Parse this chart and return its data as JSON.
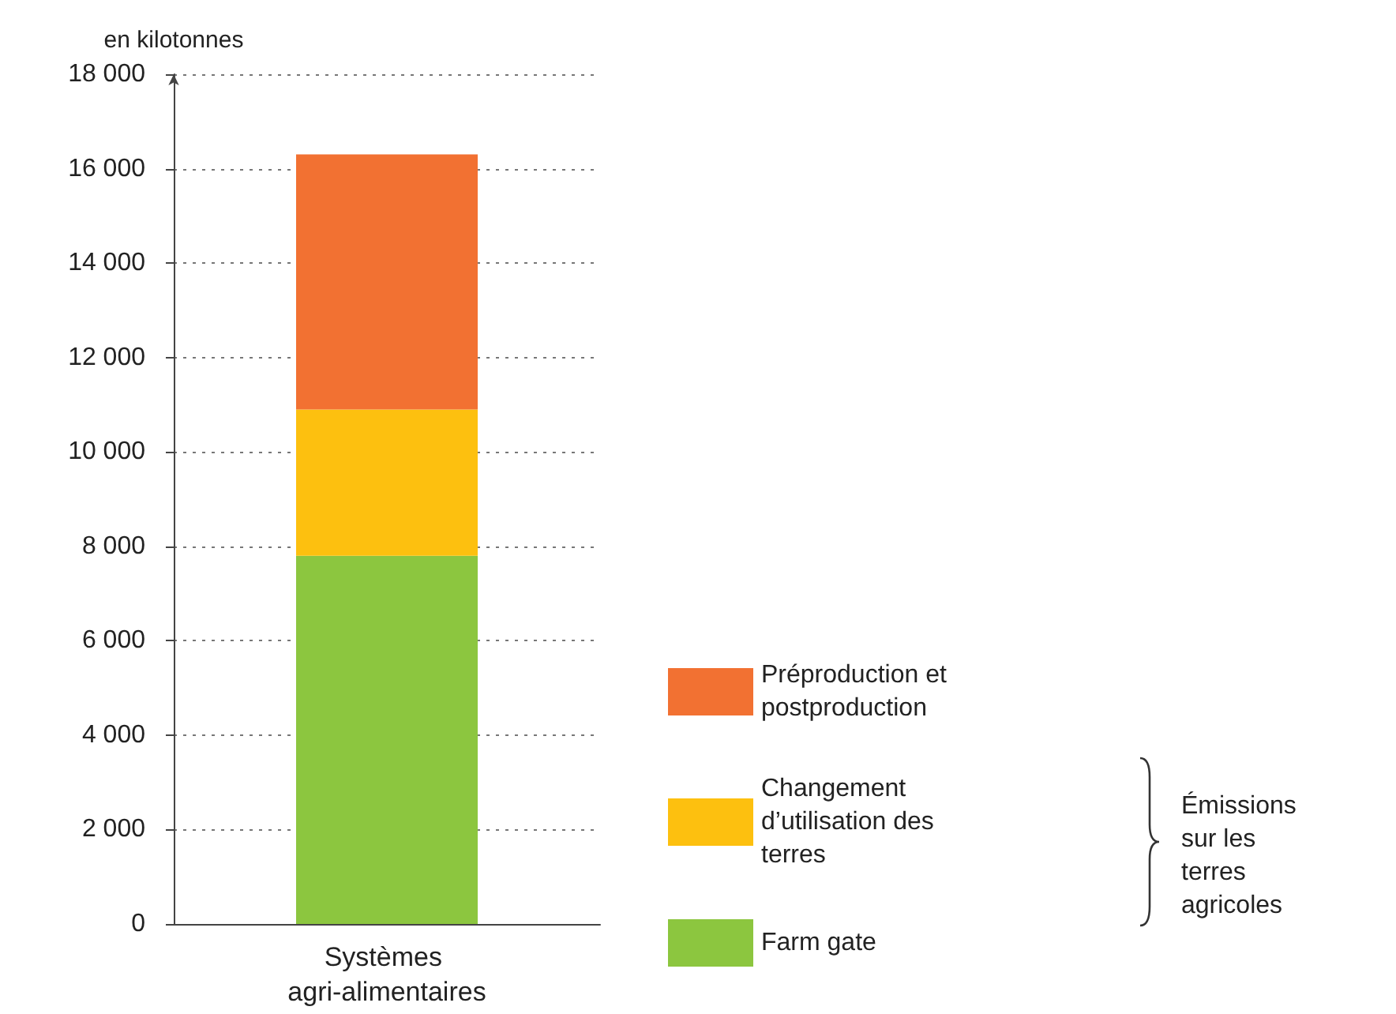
{
  "chart_data": {
    "type": "bar",
    "stacked": true,
    "ylabel": "en kilotonnes",
    "categories": [
      "Systèmes agri-alimentaires"
    ],
    "series": [
      {
        "name": "Farm gate",
        "color": "#8cc63f",
        "values": [
          7800
        ]
      },
      {
        "name": "Changement d’utilisation des terres",
        "color": "#fdc00f",
        "values": [
          3100
        ]
      },
      {
        "name": "Préproduction et postproduction",
        "color": "#f27132",
        "values": [
          5400
        ]
      }
    ],
    "ylim": [
      0,
      18000
    ],
    "yticks": [
      {
        "value": 0,
        "label": "0"
      },
      {
        "value": 2000,
        "label": "2 000"
      },
      {
        "value": 4000,
        "label": "4 000"
      },
      {
        "value": 6000,
        "label": "6 000"
      },
      {
        "value": 8000,
        "label": "8 000"
      },
      {
        "value": 10000,
        "label": "10 000"
      },
      {
        "value": 12000,
        "label": "12 000"
      },
      {
        "value": 14000,
        "label": "14 000"
      },
      {
        "value": 16000,
        "label": "16 000"
      },
      {
        "value": 18000,
        "label": "18 000"
      }
    ],
    "grid": "y",
    "legend": "bottom right",
    "annotations": [
      "Émissions sur les terres agricoles"
    ]
  }
}
